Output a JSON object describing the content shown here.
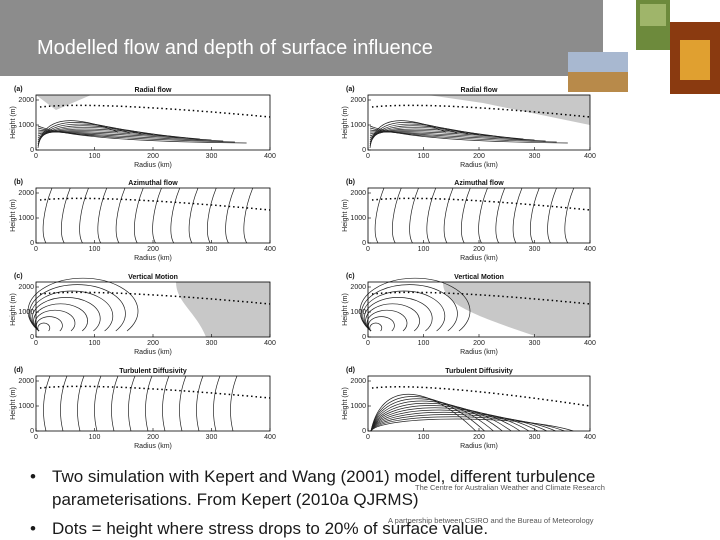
{
  "header": {
    "title": "Modelled flow and depth of surface influence"
  },
  "panels": [
    {
      "letter": "(a)",
      "title": "Radial flow",
      "y_label": "Height (m)",
      "x_label": "Radius (km)",
      "yticks": [
        "0",
        "1000",
        "2000"
      ],
      "xticks": [
        "0",
        "100",
        "200",
        "300",
        "400"
      ]
    },
    {
      "letter": "(a)",
      "title": "Radial flow",
      "y_label": "Height (m)",
      "x_label": "Radius (km)",
      "yticks": [
        "0",
        "1000",
        "2000"
      ],
      "xticks": [
        "0",
        "100",
        "200",
        "300",
        "400"
      ]
    },
    {
      "letter": "(b)",
      "title": "Azimuthal flow",
      "y_label": "Height (m)",
      "x_label": "Radius (km)",
      "yticks": [
        "0",
        "1000",
        "2000"
      ],
      "xticks": [
        "0",
        "100",
        "200",
        "300",
        "400"
      ]
    },
    {
      "letter": "(b)",
      "title": "Azimuthal flow",
      "y_label": "Height (m)",
      "x_label": "Radius (km)",
      "yticks": [
        "0",
        "1000",
        "2000"
      ],
      "xticks": [
        "0",
        "100",
        "200",
        "300",
        "400"
      ]
    },
    {
      "letter": "(c)",
      "title": "Vertical Motion",
      "y_label": "Height (m)",
      "x_label": "Radius (km)",
      "yticks": [
        "0",
        "1000",
        "2000"
      ],
      "xticks": [
        "0",
        "100",
        "200",
        "300",
        "400"
      ]
    },
    {
      "letter": "(c)",
      "title": "Vertical Motion",
      "y_label": "Height (m)",
      "x_label": "Radius (km)",
      "yticks": [
        "0",
        "1000",
        "2000"
      ],
      "xticks": [
        "0",
        "100",
        "200",
        "300",
        "400"
      ]
    },
    {
      "letter": "(d)",
      "title": "Turbulent Diffusivity",
      "y_label": "Height (m)",
      "x_label": "Radius (km)",
      "yticks": [
        "0",
        "1000",
        "2000"
      ],
      "xticks": [
        "0",
        "100",
        "200",
        "300",
        "400"
      ]
    },
    {
      "letter": "(d)",
      "title": "Turbulent Diffusivity",
      "y_label": "Height (m)",
      "x_label": "Radius (km)",
      "yticks": [
        "0",
        "1000",
        "2000"
      ],
      "xticks": [
        "0",
        "100",
        "200",
        "300",
        "400"
      ]
    }
  ],
  "bullets": [
    "Two simulation with Kepert and Wang (2001) model, different turbulence parameterisations. From Kepert (2010a QJRMS)",
    "Dots = height where stress drops to 20% of surface value."
  ],
  "footer": {
    "line1": "The Centre for Australian Weather and Climate Research",
    "line2": "A partnership between CSIRO and the Bureau of Meteorology"
  }
}
